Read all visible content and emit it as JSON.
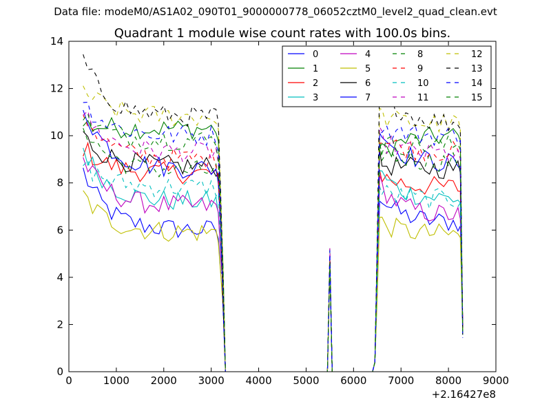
{
  "figure": {
    "suptitle": "Data file: modeM0/AS1A02_090T01_9000000778_06052cztM0_level2_quad_clean.evt"
  },
  "chart_data": {
    "type": "line",
    "title": "Quadrant 1 module wise count rates with 100.0s bins.",
    "xlabel": "",
    "ylabel": "",
    "x_offset_label": "+2.16427e8",
    "xlim": [
      0,
      9000
    ],
    "ylim": [
      0,
      14
    ],
    "xticks": [
      0,
      1000,
      2000,
      3000,
      4000,
      5000,
      6000,
      7000,
      8000,
      9000
    ],
    "yticks": [
      0,
      2,
      4,
      6,
      8,
      10,
      12,
      14
    ],
    "grid": false,
    "legend_position": "top-right",
    "legend_columns": 4,
    "x": [
      300,
      400,
      500,
      600,
      700,
      800,
      900,
      1000,
      1100,
      1200,
      1300,
      1400,
      1500,
      1600,
      1700,
      1800,
      1900,
      2000,
      2100,
      2200,
      2300,
      2400,
      2500,
      2600,
      2700,
      2800,
      2900,
      3000,
      3100,
      3150,
      3200,
      3250,
      3300,
      3400,
      3500,
      3600,
      3700,
      3800,
      3900,
      4000,
      4100,
      4200,
      4300,
      4400,
      4500,
      4600,
      4700,
      4800,
      4900,
      5000,
      5100,
      5200,
      5300,
      5400,
      5450,
      5500,
      5550,
      5600,
      5700,
      5800,
      5900,
      6000,
      6100,
      6200,
      6300,
      6400,
      6450,
      6500,
      6550,
      6600,
      6700,
      6800,
      6900,
      7000,
      7100,
      7200,
      7300,
      7400,
      7500,
      7600,
      7700,
      7800,
      7900,
      8000,
      8100,
      8200,
      8250,
      8300
    ],
    "series": [
      {
        "name": "0",
        "color": "#0000ff",
        "dash": "solid",
        "plateau1": 6.0,
        "plateau2": 6.3,
        "start": 8.5
      },
      {
        "name": "1",
        "color": "#008000",
        "dash": "solid",
        "plateau1": 10.3,
        "plateau2": 10.0,
        "start": 10.5
      },
      {
        "name": "2",
        "color": "#ff0000",
        "dash": "solid",
        "plateau1": 8.4,
        "plateau2": 7.8,
        "start": 9.5
      },
      {
        "name": "3",
        "color": "#00bfbf",
        "dash": "solid",
        "plateau1": 7.2,
        "plateau2": 7.3,
        "start": 9.5
      },
      {
        "name": "4",
        "color": "#bf00bf",
        "dash": "solid",
        "plateau1": 7.0,
        "plateau2": 6.6,
        "start": 9.0
      },
      {
        "name": "5",
        "color": "#bfbf00",
        "dash": "solid",
        "plateau1": 5.9,
        "plateau2": 5.8,
        "start": 7.5
      },
      {
        "name": "6",
        "color": "#000000",
        "dash": "solid",
        "plateau1": 8.7,
        "plateau2": 8.6,
        "start": 10.0
      },
      {
        "name": "7",
        "color": "#0000ff",
        "dash": "solid",
        "plateau1": 8.6,
        "plateau2": 8.8,
        "start": 11.3
      },
      {
        "name": "8",
        "color": "#008000",
        "dash": "dashed",
        "plateau1": 8.5,
        "plateau2": 8.9,
        "start": 10.5
      },
      {
        "name": "9",
        "color": "#ff0000",
        "dash": "dashed",
        "plateau1": 9.0,
        "plateau2": 9.3,
        "start": 11.0
      },
      {
        "name": "10",
        "color": "#00bfbf",
        "dash": "dashed",
        "plateau1": 7.8,
        "plateau2": 7.3,
        "start": 8.8
      },
      {
        "name": "11",
        "color": "#bf00bf",
        "dash": "dashed",
        "plateau1": 9.3,
        "plateau2": 9.2,
        "start": 11.0
      },
      {
        "name": "12",
        "color": "#bfbf00",
        "dash": "dashed",
        "plateau1": 10.8,
        "plateau2": 10.5,
        "start": 12.0
      },
      {
        "name": "13",
        "color": "#000000",
        "dash": "dashed",
        "plateau1": 10.8,
        "plateau2": 10.5,
        "start": 13.2
      },
      {
        "name": "14",
        "color": "#0000ff",
        "dash": "dashed",
        "plateau1": 10.0,
        "plateau2": 10.0,
        "start": 11.5
      },
      {
        "name": "15",
        "color": "#008000",
        "dash": "dashed",
        "plateau1": 9.8,
        "plateau2": 9.6,
        "start": 10.8
      }
    ]
  }
}
